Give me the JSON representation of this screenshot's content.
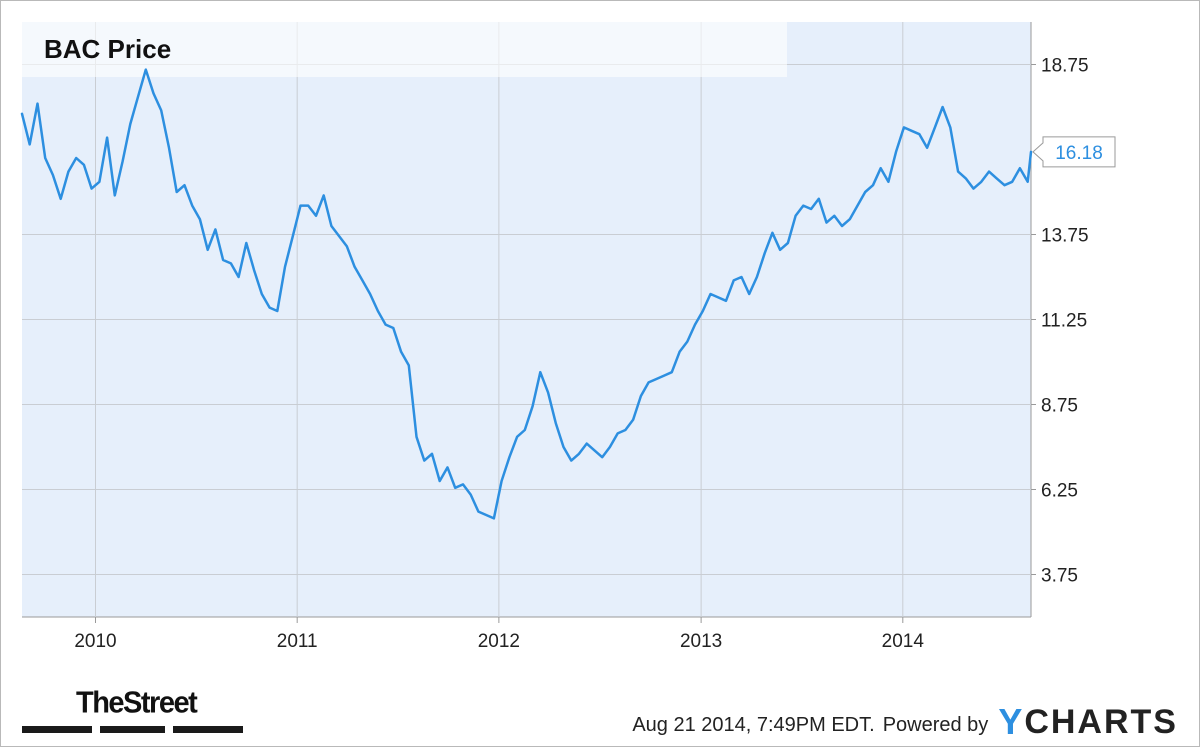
{
  "chart_data": {
    "type": "line",
    "title": "BAC Price",
    "last_value_label": "16.18",
    "ylim": [
      2.5,
      20.0
    ],
    "yticks": [
      "3.75",
      "6.25",
      "8.75",
      "11.25",
      "13.75",
      "18.75"
    ],
    "xticks": [
      "2010",
      "2011",
      "2012",
      "2013",
      "2014"
    ],
    "grid": true,
    "series": [
      {
        "color": "#2d8fe0",
        "x": [
          "2009-08-21",
          "2009-09-04",
          "2009-09-18",
          "2009-10-02",
          "2009-10-16",
          "2009-10-30",
          "2009-11-13",
          "2009-11-27",
          "2009-12-11",
          "2009-12-25",
          "2010-01-08",
          "2010-01-22",
          "2010-02-05",
          "2010-02-19",
          "2010-03-05",
          "2010-03-19",
          "2010-04-02",
          "2010-04-16",
          "2010-04-30",
          "2010-05-14",
          "2010-05-28",
          "2010-06-11",
          "2010-06-25",
          "2010-07-09",
          "2010-07-23",
          "2010-08-06",
          "2010-08-20",
          "2010-09-03",
          "2010-09-17",
          "2010-10-01",
          "2010-10-15",
          "2010-10-29",
          "2010-11-12",
          "2010-11-26",
          "2010-12-10",
          "2010-12-24",
          "2011-01-07",
          "2011-01-21",
          "2011-02-04",
          "2011-02-18",
          "2011-03-04",
          "2011-03-18",
          "2011-04-01",
          "2011-04-15",
          "2011-04-29",
          "2011-05-13",
          "2011-05-27",
          "2011-06-10",
          "2011-06-24",
          "2011-07-08",
          "2011-07-22",
          "2011-08-05",
          "2011-08-19",
          "2011-09-02",
          "2011-09-16",
          "2011-09-30",
          "2011-10-14",
          "2011-10-28",
          "2011-11-11",
          "2011-11-25",
          "2011-12-09",
          "2011-12-23",
          "2012-01-06",
          "2012-01-20",
          "2012-02-03",
          "2012-02-17",
          "2012-03-02",
          "2012-03-16",
          "2012-03-30",
          "2012-04-13",
          "2012-04-27",
          "2012-05-11",
          "2012-05-25",
          "2012-06-08",
          "2012-06-22",
          "2012-07-06",
          "2012-07-20",
          "2012-08-03",
          "2012-08-17",
          "2012-08-31",
          "2012-09-14",
          "2012-09-28",
          "2012-10-12",
          "2012-10-26",
          "2012-11-09",
          "2012-11-23",
          "2012-12-07",
          "2012-12-21",
          "2013-01-04",
          "2013-01-18",
          "2013-02-01",
          "2013-02-15",
          "2013-03-01",
          "2013-03-15",
          "2013-03-29",
          "2013-04-12",
          "2013-04-26",
          "2013-05-10",
          "2013-05-24",
          "2013-06-07",
          "2013-06-21",
          "2013-07-05",
          "2013-07-19",
          "2013-08-02",
          "2013-08-16",
          "2013-08-30",
          "2013-09-13",
          "2013-09-27",
          "2013-10-11",
          "2013-10-25",
          "2013-11-08",
          "2013-11-22",
          "2013-12-06",
          "2013-12-20",
          "2014-01-03",
          "2014-01-17",
          "2014-01-31",
          "2014-02-14",
          "2014-02-28",
          "2014-03-14",
          "2014-03-28",
          "2014-04-11",
          "2014-04-25",
          "2014-05-09",
          "2014-05-23",
          "2014-06-06",
          "2014-06-20",
          "2014-07-04",
          "2014-07-18",
          "2014-08-01",
          "2014-08-15",
          "2014-08-21"
        ],
        "values": [
          17.3,
          16.4,
          17.6,
          16.0,
          15.5,
          14.8,
          15.6,
          16.0,
          15.8,
          15.1,
          15.3,
          16.6,
          14.9,
          15.9,
          17.0,
          17.8,
          18.6,
          17.9,
          17.4,
          16.3,
          15.0,
          15.2,
          14.6,
          14.2,
          13.3,
          13.9,
          13.0,
          12.9,
          12.5,
          13.5,
          12.7,
          12.0,
          11.6,
          11.5,
          12.8,
          13.7,
          14.6,
          14.6,
          14.3,
          14.9,
          14.0,
          13.7,
          13.4,
          12.8,
          12.4,
          12.0,
          11.5,
          11.1,
          11.0,
          10.3,
          9.9,
          7.8,
          7.1,
          7.3,
          6.5,
          6.9,
          6.3,
          6.4,
          6.1,
          5.6,
          5.5,
          5.4,
          6.5,
          7.2,
          7.8,
          8.0,
          8.7,
          9.7,
          9.1,
          8.2,
          7.5,
          7.1,
          7.3,
          7.6,
          7.4,
          7.2,
          7.5,
          7.9,
          8.0,
          8.3,
          9.0,
          9.4,
          9.5,
          9.6,
          9.7,
          10.3,
          10.6,
          11.1,
          11.5,
          12.0,
          11.9,
          11.8,
          12.4,
          12.5,
          12.0,
          12.5,
          13.2,
          13.8,
          13.3,
          13.5,
          14.3,
          14.6,
          14.5,
          14.8,
          14.1,
          14.3,
          14.0,
          14.2,
          14.6,
          15.0,
          15.2,
          15.7,
          15.3,
          16.2,
          16.9,
          16.8,
          16.7,
          16.3,
          16.9,
          17.5,
          16.9,
          15.6,
          15.4,
          15.1,
          15.3,
          15.6,
          15.4,
          15.2,
          15.3,
          15.7,
          15.3,
          16.18
        ]
      }
    ]
  },
  "footer": {
    "timestamp": "Aug 21 2014, 7:49PM EDT.",
    "powered_by": "Powered by",
    "brand_y": "Y",
    "brand_rest": "CHARTS"
  },
  "logo_text": "TheStreet"
}
